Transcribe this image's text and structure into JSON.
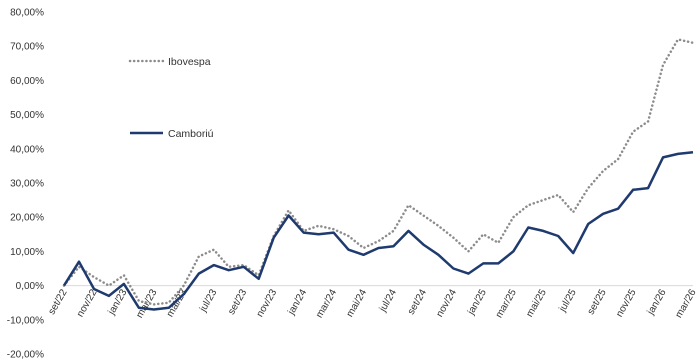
{
  "chart_data": {
    "type": "line",
    "title": "",
    "xlabel": "",
    "ylabel": "",
    "ylim": [
      -20,
      80
    ],
    "y_ticks": [
      "-20,00%",
      "-10,00%",
      "0,00%",
      "10,00%",
      "20,00%",
      "30,00%",
      "40,00%",
      "50,00%",
      "60,00%",
      "70,00%",
      "80,00%"
    ],
    "y_tick_values": [
      -20,
      -10,
      0,
      10,
      20,
      30,
      40,
      50,
      60,
      70,
      80
    ],
    "grid": false,
    "legend_position": "top-left",
    "x": [
      "set/22",
      "out/22",
      "nov/22",
      "dez/22",
      "jan/23",
      "fev/23",
      "mar/23",
      "abr/23",
      "mai/23",
      "jun/23",
      "jul/23",
      "ago/23",
      "set/23",
      "out/23",
      "nov/23",
      "dez/23",
      "jan/24",
      "fev/24",
      "mar/24",
      "abr/24",
      "mai/24",
      "jun/24",
      "jul/24",
      "ago/24",
      "set/24",
      "out/24",
      "nov/24",
      "dez/24",
      "jan/25",
      "fev/25",
      "mar/25",
      "abr/25",
      "mai/25",
      "jun/25",
      "jul/25",
      "ago/25",
      "set/25",
      "out/25",
      "nov/25",
      "dez/25",
      "jan/26",
      "fev/26",
      "mar/26"
    ],
    "x_tick_labels": [
      "set/22",
      "nov/22",
      "jan/23",
      "mar/23",
      "mai/23",
      "jul/23",
      "set/23",
      "nov/23",
      "jan/24",
      "mar/24",
      "mai/24",
      "jul/24",
      "set/24",
      "nov/24",
      "jan/25",
      "mar/25",
      "mai/25",
      "jul/25",
      "set/25",
      "nov/25",
      "jan/26",
      "mar/26"
    ],
    "series": [
      {
        "name": "Ibovespa",
        "color": "#8c8c8c",
        "style": "dotted",
        "values": [
          0.0,
          5.5,
          2.5,
          0.0,
          3.0,
          -4.5,
          -5.5,
          -5.0,
          0.0,
          8.5,
          10.5,
          5.5,
          6.0,
          3.0,
          14.5,
          22.0,
          16.0,
          17.5,
          16.5,
          14.5,
          11.0,
          13.0,
          16.0,
          23.5,
          20.5,
          17.5,
          14.0,
          10.0,
          15.0,
          12.5,
          20.0,
          23.5,
          25.0,
          26.5,
          21.5,
          28.5,
          33.5,
          37.0,
          45.0,
          48.0,
          64.5,
          72.0,
          71.0
        ]
      },
      {
        "name": "Camboriú",
        "color": "#1f3a6e",
        "style": "solid",
        "values": [
          0.0,
          7.0,
          -1.0,
          -3.0,
          0.5,
          -6.5,
          -7.0,
          -6.5,
          -2.5,
          3.5,
          6.0,
          4.5,
          5.5,
          2.0,
          14.0,
          20.5,
          15.5,
          15.0,
          15.5,
          10.5,
          9.0,
          11.0,
          11.5,
          16.0,
          12.0,
          9.0,
          5.0,
          3.5,
          6.5,
          6.5,
          10.0,
          17.0,
          16.0,
          14.5,
          9.5,
          18.0,
          21.0,
          22.5,
          28.0,
          28.5,
          37.5,
          38.5,
          39.0
        ]
      }
    ]
  }
}
